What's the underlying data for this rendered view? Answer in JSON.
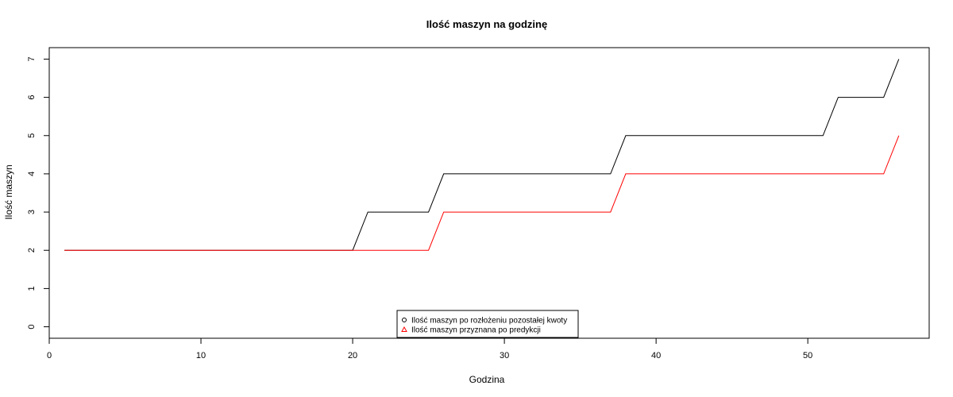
{
  "chart_data": {
    "type": "line",
    "title": "Ilość maszyn na godzinę",
    "xlabel": "Godzina",
    "ylabel": "Ilość maszyn",
    "xlim": [
      0,
      58
    ],
    "ylim": [
      -0.3,
      7.3
    ],
    "x_ticks": [
      0,
      10,
      20,
      30,
      40,
      50
    ],
    "y_ticks": [
      0,
      1,
      2,
      3,
      4,
      5,
      6,
      7
    ],
    "grid": false,
    "legend_position": "bottom-center",
    "series": [
      {
        "name": "Ilość maszyn po rozłożeniu pozostałej kwoty",
        "color": "#000000",
        "marker": "circle",
        "x": [
          1,
          2,
          3,
          4,
          5,
          6,
          7,
          8,
          9,
          10,
          11,
          12,
          13,
          14,
          15,
          16,
          17,
          18,
          19,
          20,
          21,
          22,
          23,
          24,
          25,
          26,
          27,
          28,
          29,
          30,
          31,
          32,
          33,
          34,
          35,
          36,
          37,
          38,
          39,
          40,
          41,
          42,
          43,
          44,
          45,
          46,
          47,
          48,
          49,
          50,
          51,
          52,
          53,
          54,
          55,
          56
        ],
        "values": [
          2,
          2,
          2,
          2,
          2,
          2,
          2,
          2,
          2,
          2,
          2,
          2,
          2,
          2,
          2,
          2,
          2,
          2,
          2,
          2,
          3,
          3,
          3,
          3,
          3,
          4,
          4,
          4,
          4,
          4,
          4,
          4,
          4,
          4,
          4,
          4,
          4,
          5,
          5,
          5,
          5,
          5,
          5,
          5,
          5,
          5,
          5,
          5,
          5,
          5,
          5,
          6,
          6,
          6,
          6,
          7
        ]
      },
      {
        "name": "Ilość maszyn przyznana po predykcji",
        "color": "#ff0000",
        "marker": "triangle",
        "x": [
          1,
          2,
          3,
          4,
          5,
          6,
          7,
          8,
          9,
          10,
          11,
          12,
          13,
          14,
          15,
          16,
          17,
          18,
          19,
          20,
          21,
          22,
          23,
          24,
          25,
          26,
          27,
          28,
          29,
          30,
          31,
          32,
          33,
          34,
          35,
          36,
          37,
          38,
          39,
          40,
          41,
          42,
          43,
          44,
          45,
          46,
          47,
          48,
          49,
          50,
          51,
          52,
          53,
          54,
          55,
          56
        ],
        "values": [
          2,
          2,
          2,
          2,
          2,
          2,
          2,
          2,
          2,
          2,
          2,
          2,
          2,
          2,
          2,
          2,
          2,
          2,
          2,
          2,
          2,
          2,
          2,
          2,
          2,
          3,
          3,
          3,
          3,
          3,
          3,
          3,
          3,
          3,
          3,
          3,
          3,
          4,
          4,
          4,
          4,
          4,
          4,
          4,
          4,
          4,
          4,
          4,
          4,
          4,
          4,
          4,
          4,
          4,
          4,
          5
        ]
      }
    ]
  }
}
